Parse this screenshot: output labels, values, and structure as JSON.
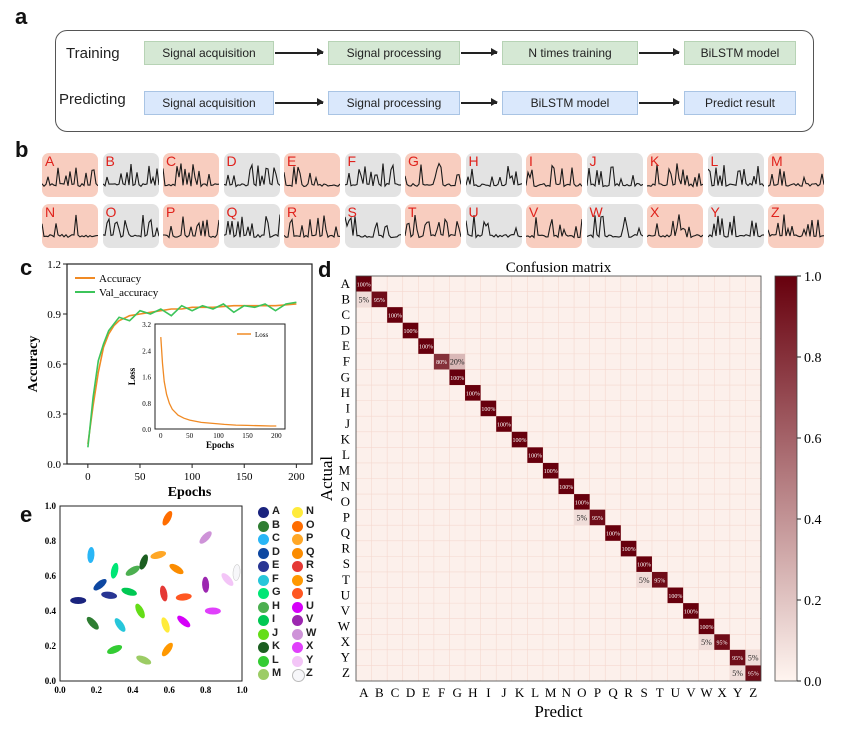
{
  "panel_labels": {
    "a": "a",
    "b": "b",
    "c": "c",
    "d": "d",
    "e": "e"
  },
  "flowchart": {
    "training_label": "Training",
    "predicting_label": "Predicting",
    "training_steps": [
      "Signal acquisition",
      "Signal processing",
      "N times training",
      "BiLSTM model"
    ],
    "predicting_steps": [
      "Signal acquisition",
      "Signal processing",
      "BiLSTM model",
      "Predict result"
    ],
    "colors": {
      "training": "#d5e8d4",
      "predicting": "#dae8fc"
    }
  },
  "signals": {
    "letters": [
      "A",
      "B",
      "C",
      "D",
      "E",
      "F",
      "G",
      "H",
      "I",
      "J",
      "K",
      "L",
      "M",
      "N",
      "O",
      "P",
      "Q",
      "R",
      "S",
      "T",
      "U",
      "V",
      "W",
      "X",
      "Y",
      "Z"
    ],
    "tile_colors": [
      "pink",
      "gray",
      "pink",
      "gray",
      "pink",
      "gray",
      "pink",
      "gray",
      "pink",
      "gray",
      "pink",
      "gray",
      "pink",
      "pink",
      "gray",
      "pink",
      "gray",
      "pink",
      "gray",
      "pink",
      "gray",
      "pink",
      "gray",
      "pink",
      "gray",
      "pink"
    ]
  },
  "chart_data": [
    {
      "type": "line",
      "panel": "c",
      "xlabel": "Epochs",
      "ylabel": "Accuracy",
      "xlim": [
        -20,
        215
      ],
      "ylim": [
        0.0,
        1.2
      ],
      "xticks": [
        0,
        50,
        100,
        150,
        200
      ],
      "yticks": [
        "0.0",
        "0.3",
        "0.6",
        "0.9",
        "1.2"
      ],
      "series": [
        {
          "name": "Accuracy",
          "color": "#f08a24",
          "x": [
            0,
            5,
            10,
            15,
            20,
            25,
            30,
            40,
            50,
            60,
            70,
            80,
            90,
            100,
            120,
            140,
            160,
            180,
            200
          ],
          "y": [
            0.12,
            0.35,
            0.55,
            0.7,
            0.78,
            0.83,
            0.86,
            0.89,
            0.9,
            0.91,
            0.92,
            0.93,
            0.93,
            0.94,
            0.94,
            0.95,
            0.95,
            0.95,
            0.96
          ]
        },
        {
          "name": "Val_accuracy",
          "color": "#3cc45a",
          "x": [
            0,
            5,
            10,
            15,
            20,
            25,
            30,
            40,
            50,
            60,
            70,
            80,
            90,
            100,
            110,
            120,
            130,
            140,
            150,
            160,
            170,
            180,
            190,
            200
          ],
          "y": [
            0.1,
            0.4,
            0.62,
            0.72,
            0.8,
            0.84,
            0.88,
            0.86,
            0.92,
            0.9,
            0.93,
            0.89,
            0.95,
            0.92,
            0.95,
            0.93,
            0.96,
            0.91,
            0.95,
            0.94,
            0.96,
            0.92,
            0.96,
            0.97
          ]
        }
      ],
      "inset": {
        "type": "line",
        "xlabel": "Epochs",
        "ylabel": "Loss",
        "ylim": [
          0.0,
          3.2
        ],
        "yticks": [
          "0.0",
          "0.8",
          "1.6",
          "2.4",
          "3.2"
        ],
        "xticks": [
          0,
          50,
          100,
          150,
          200
        ],
        "series": [
          {
            "name": "Loss",
            "color": "#f08a24",
            "x": [
              0,
              3,
              6,
              10,
              15,
              20,
              30,
              40,
              50,
              70,
              90,
              110,
              130,
              150,
              170,
              190,
              200
            ],
            "y": [
              2.8,
              2.0,
              1.45,
              1.05,
              0.78,
              0.6,
              0.42,
              0.33,
              0.27,
              0.2,
              0.17,
              0.14,
              0.12,
              0.11,
              0.1,
              0.09,
              0.09
            ]
          }
        ]
      }
    },
    {
      "type": "heatmap",
      "panel": "d",
      "title": "Confusion matrix",
      "xlabel": "Predict",
      "ylabel": "Actual",
      "labels": [
        "A",
        "B",
        "C",
        "D",
        "E",
        "F",
        "G",
        "H",
        "I",
        "J",
        "K",
        "L",
        "M",
        "N",
        "O",
        "P",
        "Q",
        "R",
        "S",
        "T",
        "U",
        "V",
        "W",
        "X",
        "Y",
        "Z"
      ],
      "colorbar_ticks": [
        "0.0",
        "0.2",
        "0.4",
        "0.6",
        "0.8",
        "1.0"
      ],
      "cells": [
        {
          "row": "A",
          "col": "A",
          "value": 1.0,
          "label": "100%"
        },
        {
          "row": "B",
          "col": "A",
          "value": 0.05,
          "label": "5%"
        },
        {
          "row": "B",
          "col": "B",
          "value": 0.95,
          "label": "95%"
        },
        {
          "row": "C",
          "col": "C",
          "value": 1.0,
          "label": "100%"
        },
        {
          "row": "D",
          "col": "D",
          "value": 1.0,
          "label": "100%"
        },
        {
          "row": "E",
          "col": "E",
          "value": 1.0,
          "label": "100%"
        },
        {
          "row": "F",
          "col": "F",
          "value": 0.8,
          "label": "80%"
        },
        {
          "row": "F",
          "col": "G",
          "value": 0.2,
          "label": "20%"
        },
        {
          "row": "G",
          "col": "G",
          "value": 1.0,
          "label": "100%"
        },
        {
          "row": "H",
          "col": "H",
          "value": 1.0,
          "label": "100%"
        },
        {
          "row": "I",
          "col": "I",
          "value": 1.0,
          "label": "100%"
        },
        {
          "row": "J",
          "col": "J",
          "value": 1.0,
          "label": "100%"
        },
        {
          "row": "K",
          "col": "K",
          "value": 1.0,
          "label": "100%"
        },
        {
          "row": "L",
          "col": "L",
          "value": 1.0,
          "label": "100%"
        },
        {
          "row": "M",
          "col": "M",
          "value": 1.0,
          "label": "100%"
        },
        {
          "row": "N",
          "col": "N",
          "value": 1.0,
          "label": "100%"
        },
        {
          "row": "O",
          "col": "O",
          "value": 1.0,
          "label": "100%"
        },
        {
          "row": "P",
          "col": "O",
          "value": 0.05,
          "label": "5%"
        },
        {
          "row": "P",
          "col": "P",
          "value": 0.95,
          "label": "95%"
        },
        {
          "row": "Q",
          "col": "Q",
          "value": 1.0,
          "label": "100%"
        },
        {
          "row": "R",
          "col": "R",
          "value": 1.0,
          "label": "100%"
        },
        {
          "row": "S",
          "col": "S",
          "value": 1.0,
          "label": "100%"
        },
        {
          "row": "T",
          "col": "S",
          "value": 0.05,
          "label": "5%"
        },
        {
          "row": "T",
          "col": "T",
          "value": 0.95,
          "label": "95%"
        },
        {
          "row": "U",
          "col": "U",
          "value": 1.0,
          "label": "100%"
        },
        {
          "row": "V",
          "col": "V",
          "value": 1.0,
          "label": "100%"
        },
        {
          "row": "W",
          "col": "W",
          "value": 1.0,
          "label": "100%"
        },
        {
          "row": "X",
          "col": "W",
          "value": 0.05,
          "label": "5%"
        },
        {
          "row": "X",
          "col": "X",
          "value": 0.95,
          "label": "95%"
        },
        {
          "row": "Y",
          "col": "Y",
          "value": 0.95,
          "label": "95%"
        },
        {
          "row": "Y",
          "col": "Z",
          "value": 0.05,
          "label": "5%"
        },
        {
          "row": "Z",
          "col": "Y",
          "value": 0.05,
          "label": "5%"
        },
        {
          "row": "Z",
          "col": "Z",
          "value": 0.95,
          "label": "95%"
        }
      ]
    },
    {
      "type": "scatter",
      "panel": "e",
      "xlim": [
        0.0,
        1.0
      ],
      "ylim": [
        0.0,
        1.0
      ],
      "xticks": [
        "0.0",
        "0.2",
        "0.4",
        "0.6",
        "0.8",
        "1.0"
      ],
      "yticks": [
        "0.0",
        "0.2",
        "0.4",
        "0.6",
        "0.8",
        "1.0"
      ],
      "legend_placement": "right",
      "series": [
        {
          "name": "A",
          "color": "#1a237e",
          "x": 0.1,
          "y": 0.46
        },
        {
          "name": "B",
          "color": "#2e7d32",
          "x": 0.18,
          "y": 0.33
        },
        {
          "name": "C",
          "color": "#29b6f6",
          "x": 0.17,
          "y": 0.72
        },
        {
          "name": "D",
          "color": "#0d47a1",
          "x": 0.22,
          "y": 0.55
        },
        {
          "name": "E",
          "color": "#283593",
          "x": 0.27,
          "y": 0.49
        },
        {
          "name": "F",
          "color": "#26c6da",
          "x": 0.33,
          "y": 0.32
        },
        {
          "name": "G",
          "color": "#00e676",
          "x": 0.3,
          "y": 0.63
        },
        {
          "name": "H",
          "color": "#4caf50",
          "x": 0.4,
          "y": 0.63
        },
        {
          "name": "I",
          "color": "#00c853",
          "x": 0.38,
          "y": 0.51
        },
        {
          "name": "J",
          "color": "#64dd17",
          "x": 0.44,
          "y": 0.4
        },
        {
          "name": "K",
          "color": "#1b5e20",
          "x": 0.46,
          "y": 0.68
        },
        {
          "name": "L",
          "color": "#33cc33",
          "x": 0.3,
          "y": 0.18
        },
        {
          "name": "M",
          "color": "#9ccc65",
          "x": 0.46,
          "y": 0.12
        },
        {
          "name": "N",
          "color": "#ffeb3b",
          "x": 0.58,
          "y": 0.32
        },
        {
          "name": "O",
          "color": "#ff6d00",
          "x": 0.59,
          "y": 0.93
        },
        {
          "name": "P",
          "color": "#ffa726",
          "x": 0.54,
          "y": 0.72
        },
        {
          "name": "Q",
          "color": "#fb8c00",
          "x": 0.64,
          "y": 0.64
        },
        {
          "name": "R",
          "color": "#e53935",
          "x": 0.57,
          "y": 0.5
        },
        {
          "name": "S",
          "color": "#ff9800",
          "x": 0.59,
          "y": 0.18
        },
        {
          "name": "T",
          "color": "#ff5722",
          "x": 0.68,
          "y": 0.48
        },
        {
          "name": "U",
          "color": "#d500f9",
          "x": 0.68,
          "y": 0.34
        },
        {
          "name": "V",
          "color": "#9c27b0",
          "x": 0.8,
          "y": 0.55
        },
        {
          "name": "W",
          "color": "#ce93d8",
          "x": 0.8,
          "y": 0.82
        },
        {
          "name": "X",
          "color": "#e040fb",
          "x": 0.84,
          "y": 0.4
        },
        {
          "name": "Y",
          "color": "#f3c5f7",
          "x": 0.92,
          "y": 0.58
        },
        {
          "name": "Z",
          "color": "#f7f7fa",
          "x": 0.97,
          "y": 0.62
        }
      ]
    }
  ]
}
